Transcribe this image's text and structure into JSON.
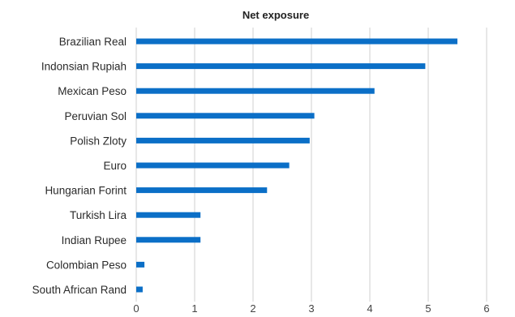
{
  "chart_data": {
    "type": "bar",
    "orientation": "horizontal",
    "title": "Net exposure",
    "xlabel": "",
    "ylabel": "",
    "categories": [
      "Brazilian Real",
      "Indonsian Rupiah",
      "Mexican Peso",
      "Peruvian Sol",
      "Polish Zloty",
      "Euro",
      "Hungarian Forint",
      "Turkish Lira",
      "Indian Rupee",
      "Colombian Peso",
      "South African Rand"
    ],
    "values": [
      5.5,
      4.95,
      4.08,
      3.05,
      2.97,
      2.62,
      2.24,
      1.1,
      1.1,
      0.14,
      0.11
    ],
    "xlim": [
      0,
      6
    ],
    "xticks": [
      "0",
      "1",
      "2",
      "3",
      "4",
      "5",
      "6"
    ],
    "grid": "vertical",
    "legend": "none",
    "bar_color": "#0b6fc7"
  }
}
